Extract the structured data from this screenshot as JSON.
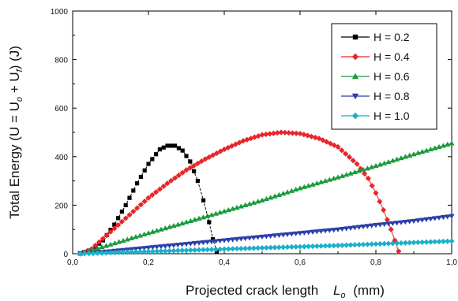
{
  "chart_data": {
    "type": "line",
    "xlabel": "Projected crack length",
    "xlabel_symbol": "L",
    "xlabel_symbol_sub": "o",
    "xlabel_unit": "(mm)",
    "ylabel": "Total Energy   (U = U",
    "ylabel_sub1": "o",
    "ylabel_mid": " + U",
    "ylabel_sub2": "f",
    "ylabel_end": ") (J)",
    "xlim": [
      0,
      1.0
    ],
    "ylim": [
      0,
      1000
    ],
    "x_ticks": [
      "0,0",
      "0,2",
      "0,4",
      "0,6",
      "0,8",
      "1,0"
    ],
    "y_ticks": [
      "0",
      "200",
      "400",
      "600",
      "800",
      "1000"
    ],
    "x_tick_values": [
      0,
      0.2,
      0.4,
      0.6,
      0.8,
      1.0
    ],
    "y_tick_values": [
      0,
      200,
      400,
      600,
      800,
      1000
    ],
    "grid": false,
    "legend_position": "top-right",
    "series": [
      {
        "name": "H = 0.2",
        "color": "#000000",
        "marker": "square",
        "x": [
          0.02,
          0.05,
          0.08,
          0.11,
          0.14,
          0.17,
          0.2,
          0.23,
          0.25,
          0.27,
          0.29,
          0.31,
          0.33,
          0.345,
          0.36,
          0.37,
          0.38
        ],
        "y": [
          2,
          15,
          55,
          120,
          200,
          290,
          370,
          430,
          445,
          445,
          425,
          380,
          300,
          220,
          130,
          60,
          10
        ]
      },
      {
        "name": "H = 0.4",
        "color": "#e8262a",
        "marker": "diamond",
        "x": [
          0.02,
          0.05,
          0.1,
          0.15,
          0.2,
          0.25,
          0.3,
          0.35,
          0.4,
          0.45,
          0.5,
          0.55,
          0.6,
          0.65,
          0.7,
          0.75,
          0.78,
          0.8,
          0.82,
          0.84,
          0.86
        ],
        "y": [
          0,
          20,
          90,
          160,
          230,
          290,
          345,
          390,
          430,
          465,
          490,
          500,
          495,
          475,
          440,
          370,
          310,
          250,
          180,
          100,
          10
        ]
      },
      {
        "name": "H = 0.6",
        "color": "#1a9b3c",
        "marker": "triangle-up",
        "x": [
          0.02,
          0.1,
          0.2,
          0.3,
          0.4,
          0.5,
          0.6,
          0.7,
          0.8,
          0.9,
          1.0
        ],
        "y": [
          0,
          38,
          85,
          130,
          175,
          220,
          270,
          315,
          362,
          410,
          455
        ]
      },
      {
        "name": "H = 0.8",
        "color": "#2b3fa8",
        "marker": "triangle-down",
        "x": [
          0.02,
          0.1,
          0.2,
          0.3,
          0.4,
          0.5,
          0.6,
          0.7,
          0.8,
          0.9,
          1.0
        ],
        "y": [
          0,
          10,
          25,
          40,
          55,
          70,
          85,
          100,
          118,
          135,
          155
        ]
      },
      {
        "name": "H = 1.0",
        "color": "#1ab0c8",
        "marker": "diamond",
        "x": [
          0.02,
          0.1,
          0.2,
          0.3,
          0.4,
          0.5,
          0.6,
          0.7,
          0.8,
          0.9,
          1.0
        ],
        "y": [
          0,
          4,
          9,
          14,
          19,
          24,
          29,
          34,
          40,
          46,
          52
        ]
      }
    ]
  }
}
